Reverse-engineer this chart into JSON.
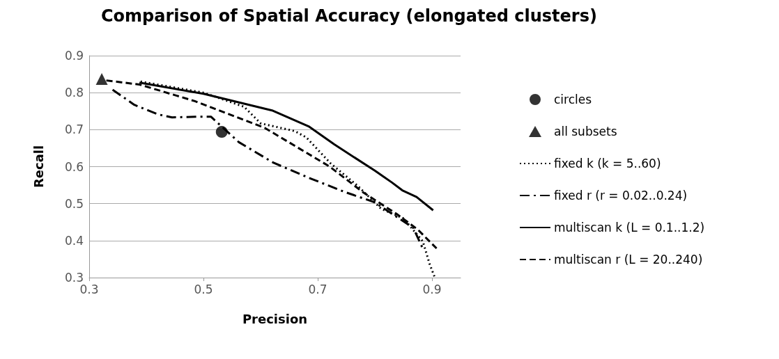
{
  "chart_data": {
    "type": "line",
    "title": "Comparison of Spatial Accuracy (elongated clusters)",
    "xlabel": "Precision",
    "ylabel": "Recall",
    "xlim": [
      0.3,
      0.95
    ],
    "xticks": [
      0.3,
      0.5,
      0.7,
      0.9
    ],
    "ylim": [
      0.3,
      0.9
    ],
    "yticks": [
      0.3,
      0.4,
      0.5,
      0.6,
      0.7,
      0.8,
      0.9
    ],
    "grid": "y",
    "legend": "right",
    "marker": "none",
    "series": [
      {
        "name": "circles",
        "type": "scatter",
        "marker": "circle",
        "color": "#000000",
        "x": [
          0.532
        ],
        "values": [
          0.694
        ]
      },
      {
        "name": "all subsets",
        "type": "scatter",
        "marker": "triangle",
        "color": "#000000",
        "x": [
          0.322
        ],
        "values": [
          0.837
        ]
      },
      {
        "name": "fixed k (k = 5..60)",
        "line_style": "dotted",
        "color": "#000000",
        "x": [
          0.39,
          0.5,
          0.571,
          0.6,
          0.66,
          0.68,
          0.723,
          0.77,
          0.811,
          0.85,
          0.884,
          0.896,
          0.905
        ],
        "values": [
          0.83,
          0.8,
          0.762,
          0.717,
          0.696,
          0.679,
          0.608,
          0.548,
          0.486,
          0.46,
          0.398,
          0.336,
          0.3
        ]
      },
      {
        "name": "fixed r (r = 0.02..0.24)",
        "line_style": "dashdot",
        "color": "#000000",
        "x": [
          0.341,
          0.379,
          0.421,
          0.445,
          0.489,
          0.513,
          0.562,
          0.622,
          0.684,
          0.748,
          0.799,
          0.867,
          0.885
        ],
        "values": [
          0.808,
          0.767,
          0.741,
          0.733,
          0.735,
          0.735,
          0.666,
          0.611,
          0.57,
          0.531,
          0.504,
          0.435,
          0.375
        ]
      },
      {
        "name": "multiscan k (L = 0.1..1.2)",
        "line_style": "solid",
        "color": "#000000",
        "x": [
          0.388,
          0.5,
          0.62,
          0.684,
          0.729,
          0.8,
          0.83,
          0.848,
          0.873,
          0.902
        ],
        "values": [
          0.827,
          0.797,
          0.752,
          0.709,
          0.66,
          0.589,
          0.557,
          0.536,
          0.518,
          0.482
        ]
      },
      {
        "name": "multiscan r (L = 20..240)",
        "line_style": "dashed",
        "color": "#000000",
        "x": [
          0.33,
          0.388,
          0.485,
          0.607,
          0.721,
          0.78,
          0.84,
          0.875,
          0.908
        ],
        "values": [
          0.833,
          0.822,
          0.777,
          0.705,
          0.6,
          0.53,
          0.47,
          0.43,
          0.379
        ]
      }
    ]
  }
}
